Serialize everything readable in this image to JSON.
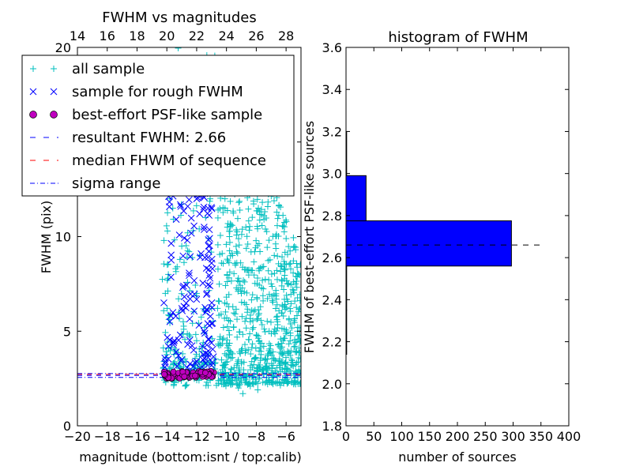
{
  "chart_data": [
    {
      "type": "scatter",
      "title": "FWHM vs magnitudes",
      "xlabel": "magnitude (bottom:isnt / top:calib)",
      "ylabel": "FWHM (pix)",
      "xlim": [
        -20,
        -5
      ],
      "ylim": [
        0,
        20
      ],
      "xticks": [
        -20,
        -18,
        -16,
        -14,
        -12,
        -10,
        -8,
        -6
      ],
      "yticks": [
        0,
        5,
        10,
        15,
        20
      ],
      "top_xticks": [
        14,
        16,
        18,
        20,
        22,
        24,
        26,
        28
      ],
      "top_offset": 34,
      "grid": false,
      "legend_placement": "upper-left",
      "series": [
        {
          "name": "all sample",
          "marker": "plus",
          "color": "#00bfbf",
          "points": [
            [
              -14.0,
              15
            ],
            [
              -13.8,
              12
            ],
            [
              -13.6,
              11.5
            ],
            [
              -13.9,
              8
            ],
            [
              -14.1,
              7
            ],
            [
              -13.2,
              6
            ],
            [
              -12.9,
              5.5
            ],
            [
              -12.5,
              4.8
            ],
            [
              -12.0,
              4.5
            ],
            [
              -11.6,
              4.2
            ],
            [
              -11.2,
              3.8
            ],
            [
              -14.2,
              3.4
            ],
            [
              -13.5,
              3.3
            ],
            [
              -12.2,
              3.2
            ],
            [
              -11.0,
              3.3
            ],
            [
              -10.6,
              17
            ],
            [
              -10.4,
              14
            ],
            [
              -10.1,
              12
            ],
            [
              -9.8,
              10
            ],
            [
              -9.6,
              9
            ],
            [
              -9.4,
              8.5
            ],
            [
              -9.2,
              7.8
            ],
            [
              -9.0,
              7
            ],
            [
              -8.8,
              6.5
            ],
            [
              -8.6,
              6
            ],
            [
              -8.4,
              5.5
            ],
            [
              -8.2,
              5.2
            ],
            [
              -8.0,
              4.8
            ],
            [
              -7.8,
              4.5
            ],
            [
              -7.5,
              4.2
            ],
            [
              -7.2,
              3.8
            ],
            [
              -6.8,
              3.5
            ],
            [
              -6.4,
              3.2
            ],
            [
              -6.0,
              3.0
            ],
            [
              -5.6,
              3.2
            ],
            [
              -5.4,
              4.2
            ],
            [
              -5.8,
              5.6
            ],
            [
              -6.6,
              6.4
            ],
            [
              -7.0,
              7.5
            ],
            [
              -7.6,
              8.4
            ],
            [
              -8.1,
              9.2
            ],
            [
              -8.7,
              10.5
            ],
            [
              -9.1,
              11.4
            ],
            [
              -9.5,
              12.6
            ],
            [
              -9.9,
              13.8
            ],
            [
              -10.3,
              15.5
            ],
            [
              -9.3,
              16.6
            ],
            [
              -8.5,
              18.2
            ],
            [
              -9.7,
              19.2
            ],
            [
              -9.0,
              4.0
            ],
            [
              -8.3,
              3.4
            ],
            [
              -7.4,
              3.1
            ],
            [
              -9.6,
              3.6
            ],
            [
              -10.2,
              5.2
            ],
            [
              -10.0,
              6.8
            ],
            [
              -9.9,
              2.6
            ],
            [
              -9.6,
              2.2
            ],
            [
              -9.2,
              2.0
            ],
            [
              -8.9,
              1.7
            ],
            [
              -8.4,
              2.1
            ],
            [
              -7.9,
              1.9
            ],
            [
              -7.1,
              2.3
            ],
            [
              -11.8,
              9.0
            ],
            [
              -12.6,
              10.2
            ],
            [
              -11.5,
              13.0
            ],
            [
              -12.8,
              14.5
            ],
            [
              -13.3,
              16.0
            ],
            [
              -11.3,
              17.5
            ],
            [
              -12.3,
              18.8
            ],
            [
              -11.0,
              6.2
            ],
            [
              -12.0,
              7.0
            ],
            [
              -13.0,
              9.5
            ],
            [
              -11.4,
              11.0
            ],
            [
              -12.4,
              12.5
            ],
            [
              -13.6,
              13.6
            ]
          ]
        },
        {
          "name": "sample for rough FWHM",
          "marker": "x",
          "color": "#0000ff",
          "points": [
            [
              -14.2,
              6.5
            ],
            [
              -13.8,
              5.5
            ],
            [
              -13.4,
              5.8
            ],
            [
              -13.0,
              6.2
            ],
            [
              -12.6,
              11.6
            ],
            [
              -12.0,
              12.0
            ],
            [
              -11.8,
              11.2
            ],
            [
              -11.5,
              10.5
            ],
            [
              -11.2,
              9.5
            ],
            [
              -11.0,
              8.6
            ],
            [
              -11.1,
              7.8
            ],
            [
              -11.3,
              7.0
            ],
            [
              -11.4,
              6.0
            ],
            [
              -11.5,
              5.0
            ],
            [
              -11.6,
              4.2
            ],
            [
              -11.2,
              4.6
            ],
            [
              -11.0,
              5.4
            ],
            [
              -12.2,
              4.0
            ],
            [
              -12.6,
              4.3
            ],
            [
              -13.1,
              4.8
            ],
            [
              -13.5,
              4.5
            ],
            [
              -13.9,
              4.2
            ],
            [
              -14.1,
              3.4
            ],
            [
              -13.0,
              3.5
            ],
            [
              -12.0,
              3.4
            ],
            [
              -11.4,
              3.3
            ],
            [
              -11.0,
              3.2
            ],
            [
              -11.8,
              13.0
            ],
            [
              -12.3,
              12.6
            ],
            [
              -11.3,
              12.3
            ]
          ]
        },
        {
          "name": "best-effort PSF-like sample",
          "marker": "circle",
          "color": "#bf00bf",
          "x_range": [
            -14.2,
            -10.8
          ],
          "y_range": [
            2.5,
            2.9
          ],
          "count": 60
        }
      ],
      "reference_lines": [
        {
          "name": "resultant FWHM: 2.66",
          "value": 2.66,
          "color": "#0000ff",
          "style": "dashed"
        },
        {
          "name": "median FHWM of sequence",
          "value": 2.72,
          "color": "#ff0000",
          "style": "dashed"
        },
        {
          "name": "sigma range",
          "values": [
            2.56,
            2.76
          ],
          "color": "#0000ff",
          "style": "dashdot"
        }
      ]
    },
    {
      "type": "bar",
      "orientation": "horizontal",
      "title": "histogram of FWHM",
      "xlabel": "number of sources",
      "ylabel": "FWHM of best-effort PSF-like sources",
      "xlim": [
        0,
        400
      ],
      "ylim": [
        1.8,
        3.6
      ],
      "xticks": [
        0,
        50,
        100,
        150,
        200,
        250,
        300,
        350,
        400
      ],
      "yticks": [
        1.8,
        2.0,
        2.2,
        2.4,
        2.6,
        2.8,
        3.0,
        3.2,
        3.4,
        3.6
      ],
      "bins": [
        {
          "y0": 2.14,
          "y1": 2.35,
          "count": 1
        },
        {
          "y0": 2.35,
          "y1": 2.56,
          "count": 0
        },
        {
          "y0": 2.56,
          "y1": 2.775,
          "count": 297
        },
        {
          "y0": 2.775,
          "y1": 2.99,
          "count": 36
        },
        {
          "y0": 2.99,
          "y1": 3.2,
          "count": 1
        }
      ],
      "bar_color": "#0000ff",
      "reference_line": {
        "value": 2.66,
        "color": "#000000",
        "style": "dashed"
      }
    }
  ]
}
